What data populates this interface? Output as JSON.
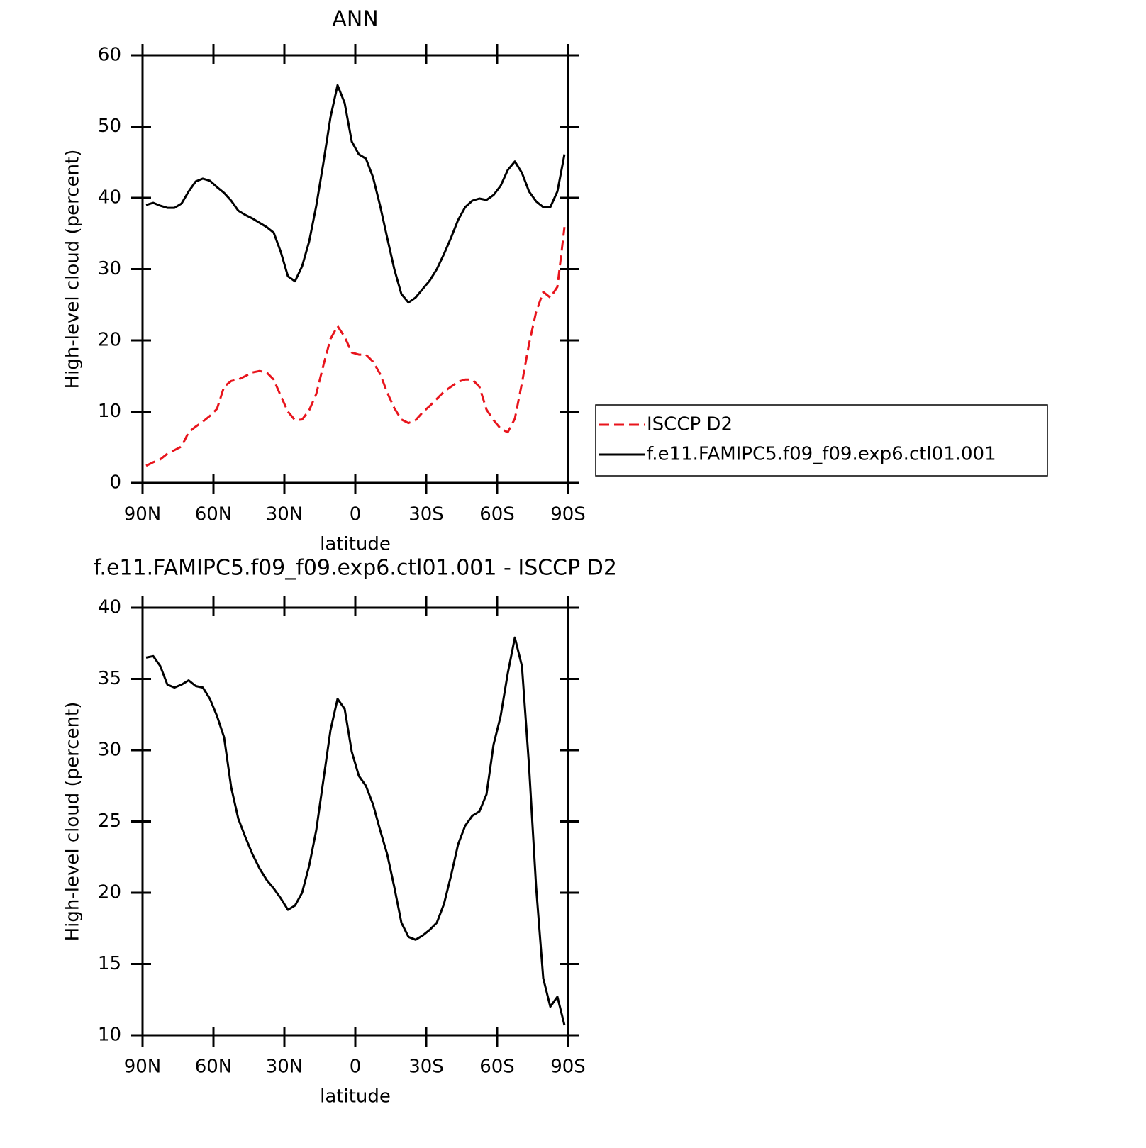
{
  "chart_data": [
    {
      "type": "line",
      "title": "ANN",
      "xlabel": "latitude",
      "ylabel": "High-level cloud (percent)",
      "x": [
        88.5,
        85.5,
        82.5,
        79.5,
        76.5,
        73.5,
        70.5,
        67.5,
        64.5,
        61.5,
        58.5,
        55.5,
        52.5,
        49.5,
        46.5,
        43.5,
        40.5,
        37.5,
        34.5,
        31.5,
        28.5,
        25.5,
        22.5,
        19.5,
        16.5,
        13.5,
        10.5,
        7.5,
        4.5,
        1.5,
        -1.5,
        -4.5,
        -7.5,
        -10.5,
        -13.5,
        -16.5,
        -19.5,
        -22.5,
        -25.5,
        -28.5,
        -31.5,
        -34.5,
        -37.5,
        -40.5,
        -43.5,
        -46.5,
        -49.5,
        -52.5,
        -55.5,
        -58.5,
        -61.5,
        -64.5,
        -67.5,
        -70.5,
        -73.5,
        -76.5,
        -79.5,
        -82.5,
        -85.5,
        -88.5
      ],
      "series": [
        {
          "name": "ISCCP D2",
          "color": "#e8141c",
          "dash": true,
          "values": [
            2.4,
            2.9,
            3.3,
            4.1,
            4.6,
            5.1,
            7.1,
            7.9,
            8.6,
            9.4,
            10.4,
            13.5,
            14.3,
            14.5,
            15,
            15.5,
            15.7,
            15.5,
            14.5,
            12.2,
            10,
            8.8,
            8.9,
            10.2,
            12.5,
            16.5,
            20.2,
            22,
            20.5,
            18.3,
            18,
            18,
            17,
            15.3,
            12.7,
            10.5,
            8.9,
            8.4,
            8.8,
            9.9,
            10.8,
            11.8,
            12.8,
            13.5,
            14.2,
            14.5,
            14.5,
            13.5,
            10.3,
            8.8,
            7.6,
            7.1,
            9,
            14,
            19.5,
            24,
            26.8,
            26,
            27.5,
            35.9
          ]
        },
        {
          "name": "f.e11.FAMIPC5.f09_f09.exp6.ctl01.001",
          "color": "#000000",
          "dash": false,
          "values": [
            39,
            39.3,
            38.9,
            38.6,
            38.6,
            39.2,
            40.9,
            42.3,
            42.7,
            42.4,
            41.5,
            40.7,
            39.6,
            38.2,
            37.6,
            37.1,
            36.5,
            35.9,
            35.1,
            32.4,
            29,
            28.3,
            30.4,
            33.9,
            38.9,
            44.9,
            51.3,
            55.8,
            53.3,
            47.9,
            46.1,
            45.5,
            42.9,
            38.9,
            34.4,
            30,
            26.5,
            25.3,
            26,
            27.2,
            28.4,
            30,
            32.1,
            34.4,
            36.9,
            38.7,
            39.6,
            39.9,
            39.7,
            40.4,
            41.7,
            43.9,
            45.1,
            43.5,
            40.9,
            39.5,
            38.7,
            38.7,
            40.9,
            46.1
          ]
        }
      ],
      "xlim": [
        90,
        -90
      ],
      "xticks": [
        {
          "value": 90,
          "label": "90N"
        },
        {
          "value": 60,
          "label": "60N"
        },
        {
          "value": 30,
          "label": "30N"
        },
        0,
        {
          "value": -30,
          "label": "30S"
        },
        {
          "value": -60,
          "label": "60S"
        },
        {
          "value": -90,
          "label": "90S"
        }
      ],
      "ylim": [
        0,
        60
      ],
      "yticks": [
        0,
        10,
        20,
        30,
        40,
        50,
        60
      ],
      "legend": "right"
    },
    {
      "type": "line",
      "title": "f.e11.FAMIPC5.f09_f09.exp6.ctl01.001 - ISCCP D2",
      "xlabel": "latitude",
      "ylabel": "High-level cloud (percent)",
      "x": [
        88.5,
        85.5,
        82.5,
        79.5,
        76.5,
        73.5,
        70.5,
        67.5,
        64.5,
        61.5,
        58.5,
        55.5,
        52.5,
        49.5,
        46.5,
        43.5,
        40.5,
        37.5,
        34.5,
        31.5,
        28.5,
        25.5,
        22.5,
        19.5,
        16.5,
        13.5,
        10.5,
        7.5,
        4.5,
        1.5,
        -1.5,
        -4.5,
        -7.5,
        -10.5,
        -13.5,
        -16.5,
        -19.5,
        -22.5,
        -25.5,
        -28.5,
        -31.5,
        -34.5,
        -37.5,
        -40.5,
        -43.5,
        -46.5,
        -49.5,
        -52.5,
        -55.5,
        -58.5,
        -61.5,
        -64.5,
        -67.5,
        -70.5,
        -73.5,
        -76.5,
        -79.5,
        -82.5,
        -85.5,
        -88.5
      ],
      "series": [
        {
          "color": "#000000",
          "dash": false,
          "values": [
            36.5,
            36.6,
            35.9,
            34.6,
            34.4,
            34.6,
            34.9,
            34.5,
            34.4,
            33.6,
            32.4,
            30.9,
            27.4,
            25.2,
            23.9,
            22.7,
            21.7,
            20.9,
            20.3,
            19.6,
            18.8,
            19.1,
            20,
            21.9,
            24.4,
            27.9,
            31.4,
            33.6,
            32.9,
            29.9,
            28.2,
            27.5,
            26.2,
            24.4,
            22.7,
            20.4,
            17.9,
            16.9,
            16.7,
            17,
            17.4,
            17.9,
            19.2,
            21.2,
            23.4,
            24.7,
            25.4,
            25.7,
            26.9,
            30.4,
            32.4,
            35.4,
            37.9,
            35.9,
            28.9,
            20.4,
            14,
            12,
            12.7,
            10.7
          ]
        }
      ],
      "xlim": [
        90,
        -90
      ],
      "xticks": [
        {
          "value": 90,
          "label": "90N"
        },
        {
          "value": 60,
          "label": "60N"
        },
        {
          "value": 30,
          "label": "30N"
        },
        0,
        {
          "value": -30,
          "label": "30S"
        },
        {
          "value": -60,
          "label": "60S"
        },
        {
          "value": -90,
          "label": "90S"
        }
      ],
      "ylim": [
        10,
        40
      ],
      "yticks": [
        10,
        15,
        20,
        25,
        30,
        35,
        40
      ]
    }
  ]
}
